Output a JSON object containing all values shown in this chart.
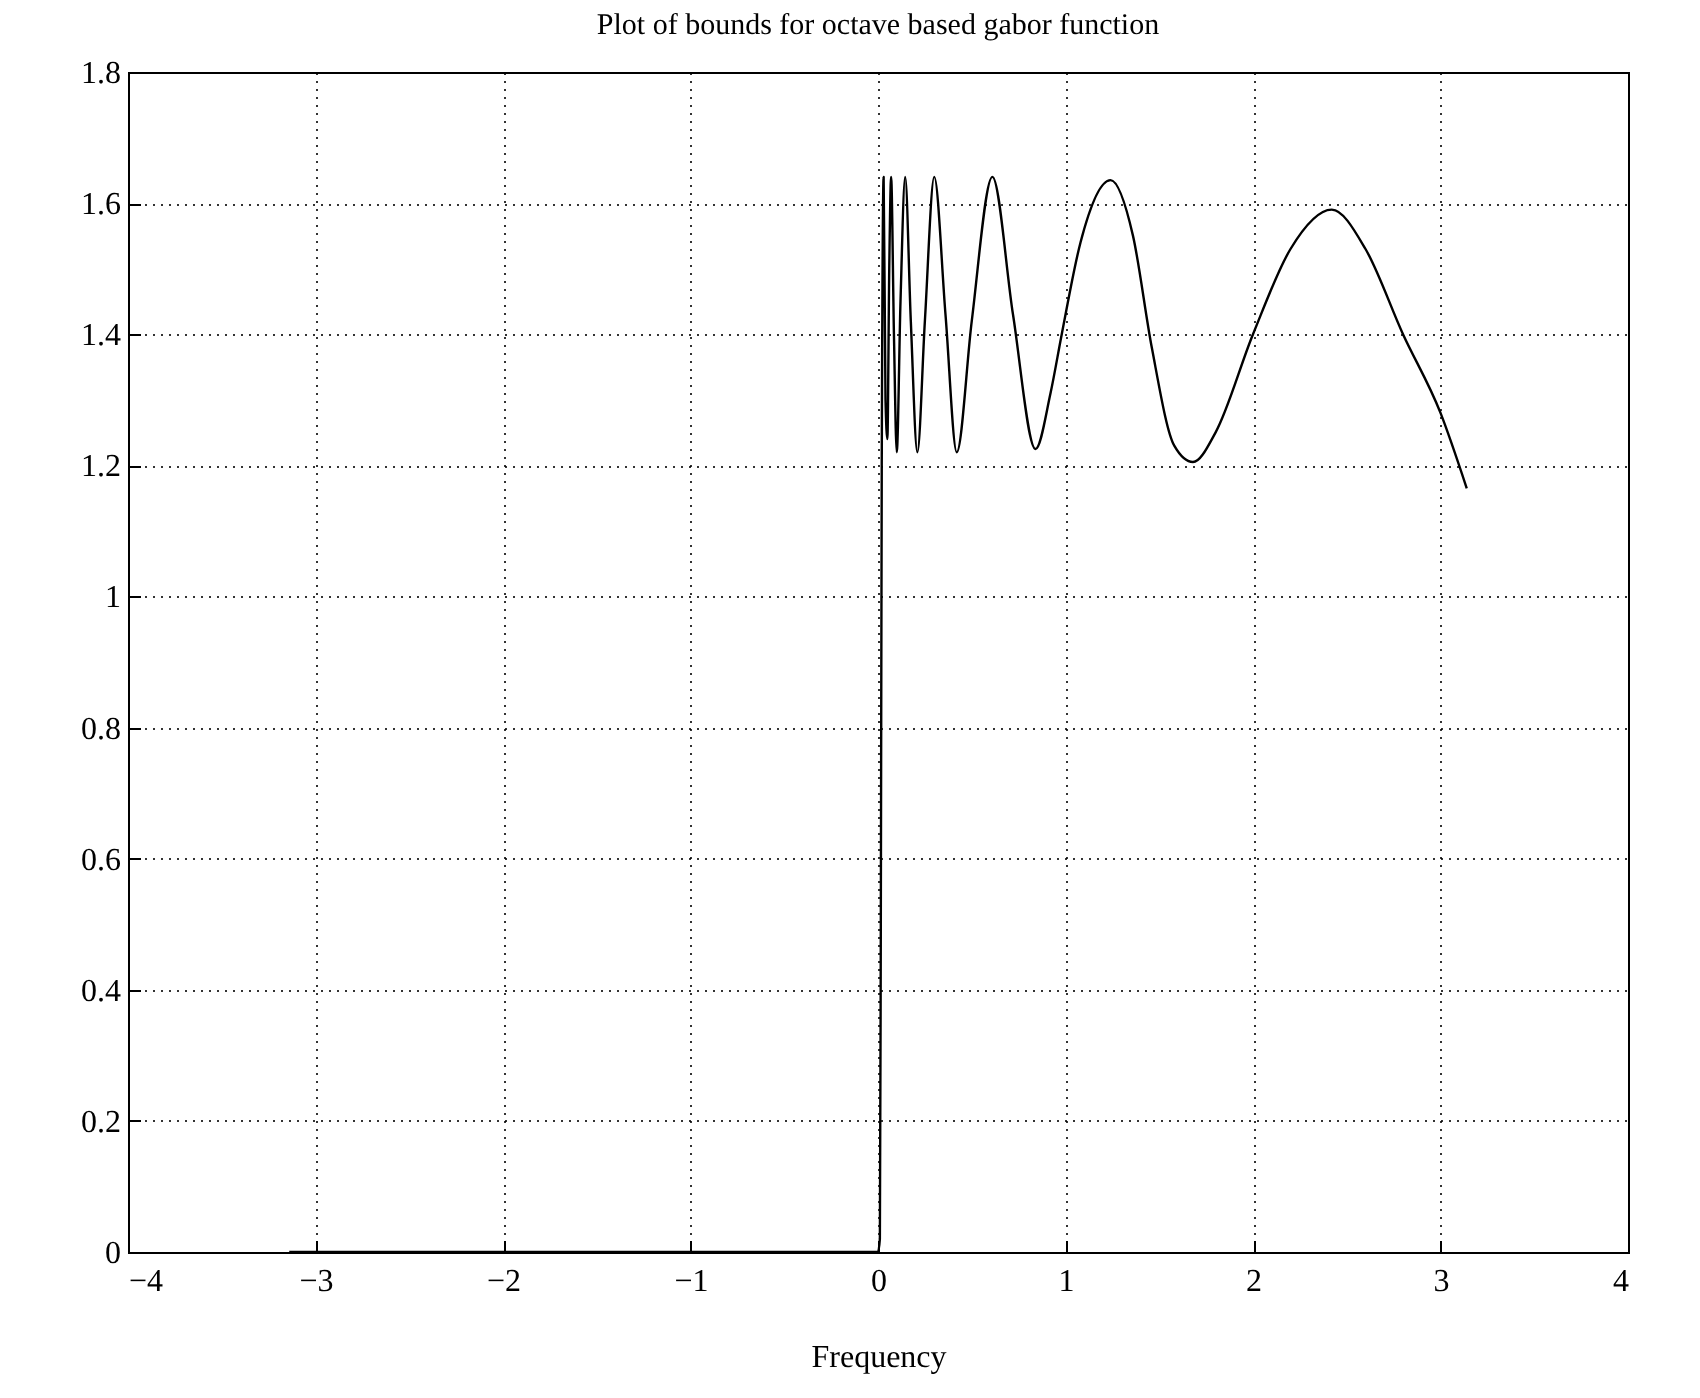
{
  "chart_data": {
    "type": "line",
    "title": "Plot of bounds for octave based gabor function",
    "xlabel": "Frequency",
    "series": [
      {
        "color": "#000000",
        "x": [
          -3.14,
          -2,
          -1,
          0,
          0.01,
          0.015,
          0.02,
          0.03,
          0.04,
          0.05,
          0.06,
          0.07,
          0.085,
          0.1,
          0.12,
          0.145,
          0.175,
          0.21,
          0.25,
          0.3,
          0.36,
          0.42,
          0.5,
          0.61,
          0.72,
          0.84,
          0.92,
          0.98,
          1.08,
          1.24,
          1.36,
          1.46,
          1.58,
          1.68,
          1.8,
          2,
          2.2,
          2.42,
          2.6,
          2.8,
          3,
          3.14
        ],
        "values": [
          0,
          0,
          0,
          0,
          0.02,
          0.5,
          1.2,
          1.64,
          1.3,
          1.24,
          1.5,
          1.64,
          1.4,
          1.22,
          1.45,
          1.64,
          1.42,
          1.22,
          1.42,
          1.64,
          1.43,
          1.22,
          1.42,
          1.64,
          1.43,
          1.225,
          1.31,
          1.4,
          1.54,
          1.635,
          1.55,
          1.38,
          1.23,
          1.205,
          1.25,
          1.4,
          1.53,
          1.59,
          1.53,
          1.4,
          1.28,
          1.165
        ]
      }
    ],
    "xlim": [
      -4,
      4
    ],
    "xticks": [
      -4,
      -3,
      -2,
      -1,
      0,
      1,
      2,
      3,
      4
    ],
    "ylim": [
      0,
      1.8
    ],
    "yticks": [
      0,
      0.2,
      0.4,
      0.6,
      0.8,
      1,
      1.2,
      1.4,
      1.6,
      1.8
    ],
    "grid": true,
    "line_style": "solid",
    "marker": "none"
  }
}
